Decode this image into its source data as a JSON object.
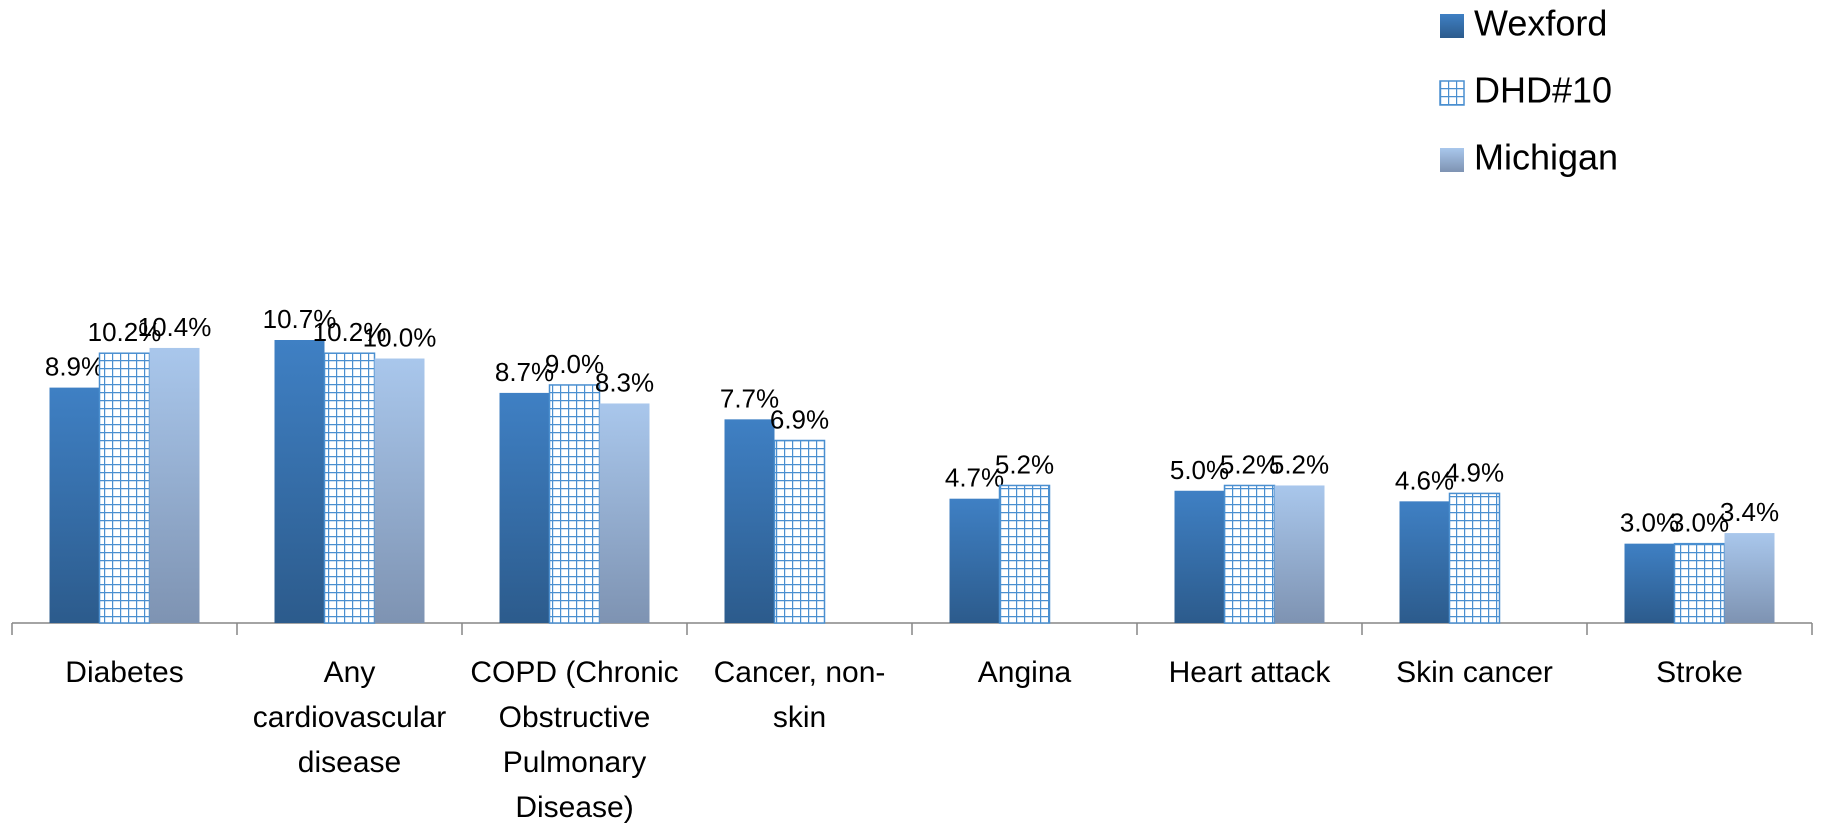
{
  "chart_data": {
    "type": "bar",
    "categories": [
      "Diabetes",
      "Any cardiovascular disease",
      "COPD (Chronic Obstructive Pulmonary Disease)",
      "Cancer, non-skin",
      "Angina",
      "Heart attack",
      "Skin cancer",
      "Stroke"
    ],
    "series": [
      {
        "name": "Wexford",
        "color": "#3a78b8",
        "fill": "gradient",
        "values": [
          8.9,
          10.7,
          8.7,
          7.7,
          4.7,
          5.0,
          4.6,
          3.0
        ],
        "value_labels": [
          "8.9%",
          "10.7%",
          "8.7%",
          "7.7%",
          "4.7%",
          "5.0%",
          "4.6%",
          "3.0%"
        ]
      },
      {
        "name": "DHD#10",
        "color": "#4a8fd0",
        "fill": "grid",
        "values": [
          10.2,
          10.2,
          9.0,
          6.9,
          5.2,
          5.2,
          4.9,
          3.0
        ],
        "value_labels": [
          "10.2%",
          "10.2%",
          "9.0%",
          "6.9%",
          "5.2%",
          "5.2%",
          "4.9%",
          "3.0%"
        ]
      },
      {
        "name": "Michigan",
        "color": "#a7c4e8",
        "fill": "gradient",
        "values": [
          10.4,
          10.0,
          8.3,
          null,
          null,
          5.2,
          null,
          3.4
        ],
        "value_labels": [
          "10.4%",
          "10.0%",
          "8.3%",
          null,
          null,
          "5.2%",
          null,
          "3.4%"
        ]
      }
    ],
    "legend": "top-right"
  }
}
